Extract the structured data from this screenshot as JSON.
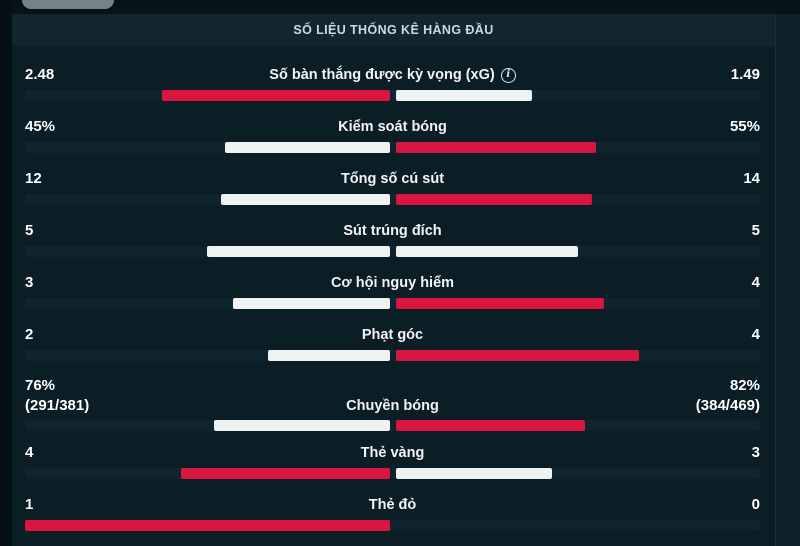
{
  "header": {
    "title": "SỐ LIỆU THỐNG KÊ HÀNG ĐẦU"
  },
  "colors": {
    "accent_red": "#d9163f",
    "bar_white": "#f0f2f2",
    "background": "#0b1d25",
    "header_band": "#12262e",
    "bar_track": "#10242d",
    "tab_gray": "#75828a"
  },
  "info_icon": {
    "glyph": "i"
  },
  "chart_data": {
    "type": "bar",
    "description": "Head-to-head football match statistics, paired horizontal bars from center; red = leading side, white = other side",
    "stats": [
      {
        "label": "Số bàn thắng được kỳ vọng (xG)",
        "has_info_icon": true,
        "home_value": "2.48",
        "away_value": "1.49",
        "home_pct": 62.5,
        "away_pct": 37.5,
        "home_color": "red",
        "away_color": "white"
      },
      {
        "label": "Kiểm soát bóng",
        "has_info_icon": false,
        "home_value": "45%",
        "away_value": "55%",
        "home_pct": 45,
        "away_pct": 55,
        "home_color": "white",
        "away_color": "red"
      },
      {
        "label": "Tổng số cú sút",
        "has_info_icon": false,
        "home_value": "12",
        "away_value": "14",
        "home_pct": 46.2,
        "away_pct": 53.8,
        "home_color": "white",
        "away_color": "red"
      },
      {
        "label": "Sút trúng đích",
        "has_info_icon": false,
        "home_value": "5",
        "away_value": "5",
        "home_pct": 50,
        "away_pct": 50,
        "home_color": "white",
        "away_color": "white"
      },
      {
        "label": "Cơ hội nguy hiểm",
        "has_info_icon": false,
        "home_value": "3",
        "away_value": "4",
        "home_pct": 42.9,
        "away_pct": 57.1,
        "home_color": "white",
        "away_color": "red"
      },
      {
        "label": "Phạt góc",
        "has_info_icon": false,
        "home_value": "2",
        "away_value": "4",
        "home_pct": 33.3,
        "away_pct": 66.7,
        "home_color": "white",
        "away_color": "red"
      },
      {
        "label": "Chuyền bóng",
        "has_info_icon": false,
        "home_value": "76%",
        "home_sub": "(291/381)",
        "away_value": "82%",
        "away_sub": "(384/469)",
        "home_pct": 48.1,
        "away_pct": 51.9,
        "home_color": "white",
        "away_color": "red"
      },
      {
        "label": "Thẻ vàng",
        "has_info_icon": false,
        "home_value": "4",
        "away_value": "3",
        "home_pct": 57.1,
        "away_pct": 42.9,
        "home_color": "red",
        "away_color": "white"
      },
      {
        "label": "Thẻ đỏ",
        "has_info_icon": false,
        "home_value": "1",
        "away_value": "0",
        "home_pct": 100,
        "away_pct": 0,
        "home_color": "red",
        "away_color": "none"
      }
    ]
  }
}
